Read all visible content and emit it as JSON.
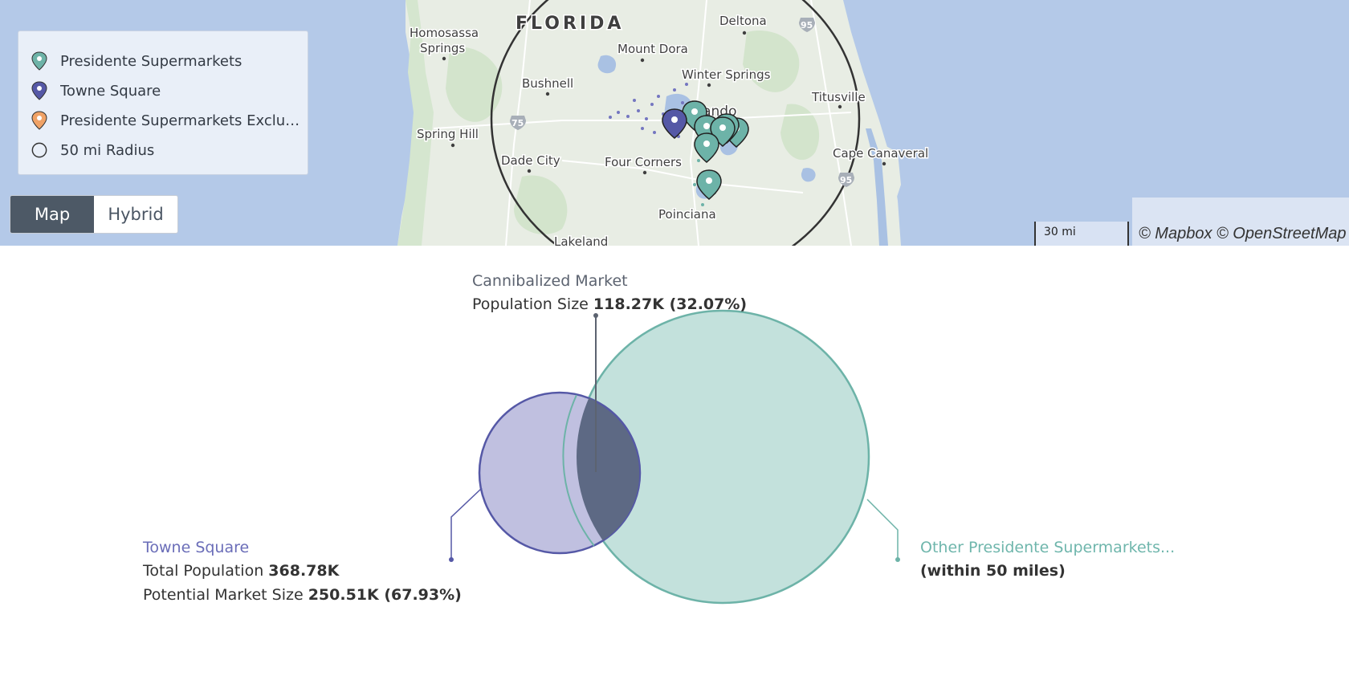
{
  "map": {
    "place_labels": {
      "florida": "FLORIDA",
      "homosassa": "Homosassa",
      "springs": "Springs",
      "deltona": "Deltona",
      "mount_dora": "Mount Dora",
      "bushnell": "Bushnell",
      "winter_springs": "Winter Springs",
      "titusville": "Titusville",
      "orlando": "Orlando",
      "spring_hill": "Spring Hill",
      "dade_city": "Dade City",
      "four_corners": "Four Corners",
      "cape_canaveral": "Cape Canaveral",
      "poinciana": "Poinciana",
      "lakeland": "Lakeland"
    },
    "highway_shields": [
      "95",
      "75",
      "95"
    ],
    "legend": [
      {
        "label": "Presidente Supermarkets",
        "icon": "teal-map-pin-icon",
        "color": "#6db3a8"
      },
      {
        "label": "Towne Square",
        "icon": "purple-map-pin-icon",
        "color": "#5558a6"
      },
      {
        "label": "Presidente Supermarkets Exclud...",
        "icon": "orange-map-pin-icon",
        "color": "#f0a266"
      },
      {
        "label": "50 mi Radius",
        "icon": "circle-outline-icon",
        "color": "#333333"
      }
    ],
    "view_toggle": {
      "map_label": "Map",
      "hybrid_label": "Hybrid",
      "selected": "Map"
    },
    "scale_label": "30 mi",
    "attribution": "© Mapbox © OpenStreetMap"
  },
  "venn": {
    "colors": {
      "towne": "#5558a6",
      "towne_fill": "#c0c0e0",
      "other": "#6db3a8",
      "other_fill": "#c3e1dc",
      "overlap": "#5d6984"
    },
    "cannibalized": {
      "title": "Cannibalized Market",
      "prefix": "Population Size",
      "value": "118.27K (32.07%)"
    },
    "towne": {
      "title": "Towne Square",
      "pop_prefix": "Total Population",
      "pop_value": "368.78K",
      "market_prefix": "Potential Market Size",
      "market_value": "250.51K (67.93%)"
    },
    "other": {
      "title": "Other Presidente Supermarkets...",
      "subtitle": "(within 50 miles)"
    }
  }
}
